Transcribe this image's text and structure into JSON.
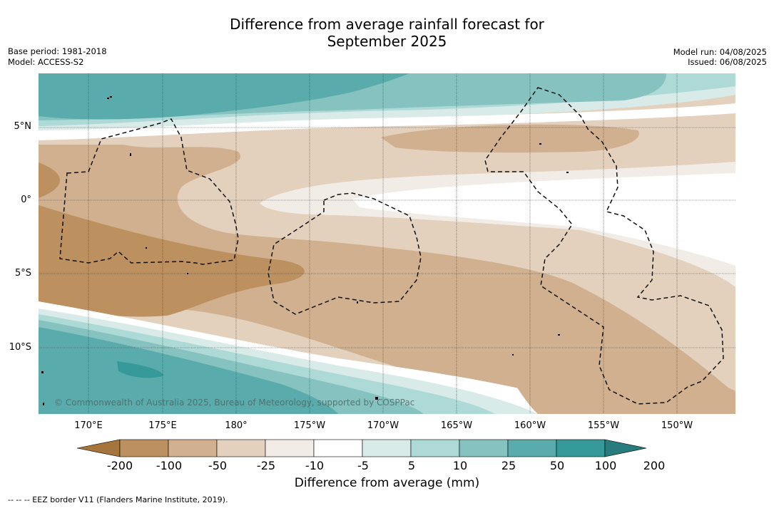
{
  "header": {
    "title_line1": "Difference from average rainfall forecast for",
    "title_line2": "September 2025",
    "base_period": "Base period: 1981-2018",
    "model": "Model: ACCESS-S2",
    "model_run": "Model run: 04/08/2025",
    "issued": "Issued: 06/08/2025"
  },
  "map": {
    "lat_labels": [
      "5°N",
      "0°",
      "5°S",
      "10°S"
    ],
    "lon_labels": [
      "170°E",
      "175°E",
      "180°",
      "175°W",
      "170°W",
      "165°W",
      "160°W",
      "155°W",
      "150°W"
    ],
    "copyright": "© Commonwealth of Australia 2025, Bureau of Meteorology, supported by COSPPac"
  },
  "colorbar": {
    "title": "Difference from average (mm)",
    "labels": [
      "-200",
      "-100",
      "-50",
      "-25",
      "-10",
      "-5",
      "5",
      "10",
      "25",
      "50",
      "100",
      "200"
    ],
    "colors": [
      "#a6743d",
      "#bc915f",
      "#d0b08f",
      "#e3d0bd",
      "#f2ece6",
      "#ffffff",
      "#d8ebe9",
      "#add9d6",
      "#85c2c0",
      "#5aabac",
      "#35999a",
      "#287c7d"
    ]
  },
  "footnote": "--  --  -- EEZ border V11 (Flanders Marine Institute, 2019)."
}
